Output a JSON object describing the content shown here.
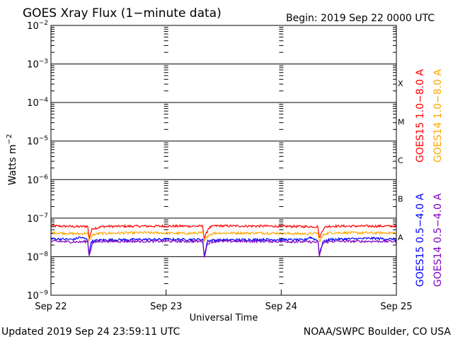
{
  "chart_data": {
    "type": "line",
    "title": "GOES Xray Flux (1−minute data)",
    "begin_label": "Begin:  2019 Sep 22 0000 UTC",
    "xlabel": "Universal Time",
    "ylabel": "Watts m",
    "ylabel_exp": "−2",
    "y_scale": "log",
    "ylim_exp": [
      -9,
      -2
    ],
    "y_tick_exponents": [
      -2,
      -3,
      -4,
      -5,
      -6,
      -7,
      -8,
      -9
    ],
    "y_tick_base": "10",
    "xlim_days": [
      22,
      25
    ],
    "x_ticks": [
      {
        "day": 22,
        "label": "Sep 22"
      },
      {
        "day": 23,
        "label": "Sep 23"
      },
      {
        "day": 24,
        "label": "Sep 24"
      },
      {
        "day": 25,
        "label": "Sep 25"
      }
    ],
    "flare_classes": [
      {
        "label": "X",
        "exp": -4
      },
      {
        "label": "M",
        "exp": -5
      },
      {
        "label": "C",
        "exp": -6
      },
      {
        "label": "B",
        "exp": -7
      },
      {
        "label": "A",
        "exp": -8
      }
    ],
    "grid": "horizontal lines at each decade from 1e-3 to 1e-8",
    "colors": {
      "goes15_long": "#ff0000",
      "goes14_long": "#ffa500",
      "goes15_short": "#0000ff",
      "goes14_short": "#8000c0"
    },
    "legend_placement": "right side, rotated vertical",
    "series": [
      {
        "name": "GOES15 1.0−8.0 A",
        "color": "#ff0000",
        "points": [
          [
            22.0,
            6.3e-08
          ],
          [
            22.25,
            6e-08
          ],
          [
            22.32,
            6.2e-08
          ],
          [
            22.33,
            3e-08
          ],
          [
            22.36,
            5.4e-08
          ],
          [
            22.4,
            5.6e-08
          ],
          [
            22.45,
            6.1e-08
          ],
          [
            22.8,
            6.2e-08
          ],
          [
            23.32,
            6.2e-08
          ],
          [
            23.33,
            2.9e-08
          ],
          [
            23.37,
            5.6e-08
          ],
          [
            23.42,
            6.3e-08
          ],
          [
            23.9,
            6.2e-08
          ],
          [
            24.32,
            6e-08
          ],
          [
            24.33,
            3e-08
          ],
          [
            24.37,
            5.7e-08
          ],
          [
            24.42,
            6.2e-08
          ],
          [
            25.0,
            6.2e-08
          ]
        ]
      },
      {
        "name": "GOES14 1.0−8.0 A",
        "color": "#ffa500",
        "points": [
          [
            22.0,
            4.2e-08
          ],
          [
            22.25,
            3.9e-08
          ],
          [
            22.32,
            4.1e-08
          ],
          [
            22.33,
            2.5e-08
          ],
          [
            22.36,
            3.7e-08
          ],
          [
            22.42,
            4e-08
          ],
          [
            22.8,
            4.2e-08
          ],
          [
            23.2,
            4e-08
          ],
          [
            23.32,
            4.2e-08
          ],
          [
            23.33,
            2.4e-08
          ],
          [
            23.37,
            3.7e-08
          ],
          [
            23.42,
            4.1e-08
          ],
          [
            23.9,
            4.1e-08
          ],
          [
            24.22,
            3.9e-08
          ],
          [
            24.32,
            4.1e-08
          ],
          [
            24.33,
            2.4e-08
          ],
          [
            24.37,
            3.8e-08
          ],
          [
            24.42,
            4.2e-08
          ],
          [
            25.0,
            4.1e-08
          ]
        ]
      },
      {
        "name": "GOES15 0.5−4.0 A",
        "color": "#0000ff",
        "points": [
          [
            22.0,
            2.9e-08
          ],
          [
            22.2,
            2.8e-08
          ],
          [
            22.25,
            3.2e-08
          ],
          [
            22.32,
            2.8e-08
          ],
          [
            22.33,
            1.05e-08
          ],
          [
            22.35,
            2.5e-08
          ],
          [
            22.42,
            2.7e-08
          ],
          [
            22.8,
            2.8e-08
          ],
          [
            23.32,
            2.8e-08
          ],
          [
            23.33,
            1e-08
          ],
          [
            23.36,
            2.6e-08
          ],
          [
            23.42,
            2.7e-08
          ],
          [
            23.9,
            2.8e-08
          ],
          [
            24.2,
            2.7e-08
          ],
          [
            24.25,
            3.2e-08
          ],
          [
            24.32,
            2.6e-08
          ],
          [
            24.33,
            1.1e-08
          ],
          [
            24.36,
            2.4e-08
          ],
          [
            24.42,
            2.8e-08
          ],
          [
            24.8,
            3e-08
          ],
          [
            25.0,
            2.8e-08
          ]
        ]
      },
      {
        "name": "GOES14 0.5−4.0 A",
        "color": "#8000c0",
        "points": [
          [
            22.0,
            2.5e-08
          ],
          [
            22.25,
            2.4e-08
          ],
          [
            22.32,
            2.5e-08
          ],
          [
            22.33,
            1e-08
          ],
          [
            22.36,
            2.3e-08
          ],
          [
            22.42,
            2.5e-08
          ],
          [
            22.8,
            2.5e-08
          ],
          [
            23.32,
            2.5e-08
          ],
          [
            23.33,
            9.5e-09
          ],
          [
            23.36,
            2.2e-08
          ],
          [
            23.42,
            2.5e-08
          ],
          [
            23.9,
            2.5e-08
          ],
          [
            24.32,
            2.4e-08
          ],
          [
            24.33,
            1e-08
          ],
          [
            24.36,
            2.2e-08
          ],
          [
            24.42,
            2.5e-08
          ],
          [
            25.0,
            2.5e-08
          ]
        ]
      }
    ]
  },
  "footer": {
    "updated": "Updated 2019 Sep 24 23:59:11 UTC",
    "credit": "NOAA/SWPC Boulder, CO USA"
  }
}
